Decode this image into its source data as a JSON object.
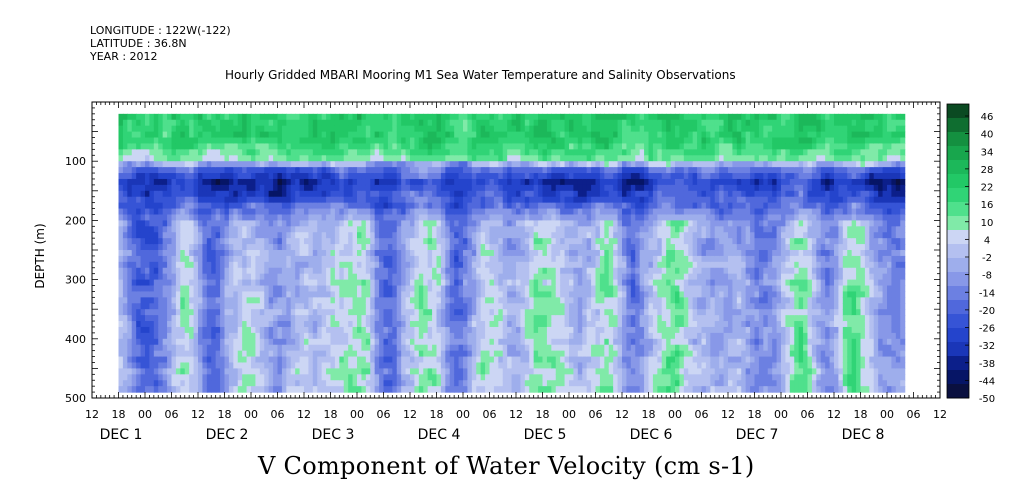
{
  "header": {
    "longitude": "LONGITUDE : 122W(-122)",
    "latitude": "LATITUDE : 36.8N",
    "year": "YEAR : 2012"
  },
  "chart_data": {
    "type": "heatmap",
    "title": "Hourly Gridded MBARI Mooring M1 Sea Water Temperature and Salinity Observations",
    "subtitle": "V Component of Water Velocity (cm s-1)",
    "ylabel": "DEPTH (m)",
    "ylim": [
      500,
      0
    ],
    "yticks": [
      100,
      200,
      300,
      400,
      500
    ],
    "xlim_hours": [
      12,
      204
    ],
    "xticks_hours": [
      "12",
      "18",
      "00",
      "06",
      "12",
      "18",
      "00",
      "06",
      "12",
      "18",
      "00",
      "06",
      "12",
      "18",
      "00",
      "06",
      "12",
      "18",
      "00",
      "06",
      "12",
      "18",
      "00",
      "06",
      "12",
      "18",
      "00",
      "06",
      "12",
      "18",
      "00",
      "06",
      "12"
    ],
    "day_labels": [
      "DEC 1",
      "DEC 2",
      "DEC 3",
      "DEC 4",
      "DEC 5",
      "DEC 6",
      "DEC 7",
      "DEC 8"
    ],
    "colorbar_labels": [
      "46",
      "40",
      "34",
      "28",
      "22",
      "16",
      "10",
      "4",
      "-2",
      "-8",
      "-14",
      "-20",
      "-26",
      "-32",
      "-38",
      "-44",
      "-50"
    ],
    "colorbar_colors": [
      "#0b4a22",
      "#0f6e30",
      "#149040",
      "#18a64d",
      "#1cb85a",
      "#22c866",
      "#30d476",
      "#4fe08c",
      "#80eaa8",
      "#ccd6f4",
      "#b4c0f0",
      "#9eaeec",
      "#8898e8",
      "#6c80e2",
      "#5068dc",
      "#3654d6",
      "#2444cc",
      "#1a36b8",
      "#0c1f8a",
      "#061566",
      "#0a1040"
    ],
    "data_start_hour": 18,
    "data_end_hour": 196,
    "data_depth_range": [
      20,
      485
    ],
    "mean_profile_cm_s": [
      [
        20,
        22
      ],
      [
        60,
        20
      ],
      [
        90,
        10
      ],
      [
        110,
        -20
      ],
      [
        130,
        -32
      ],
      [
        160,
        -24
      ],
      [
        200,
        -8
      ],
      [
        260,
        -6
      ],
      [
        320,
        -4
      ],
      [
        400,
        -4
      ],
      [
        485,
        -2
      ]
    ]
  }
}
